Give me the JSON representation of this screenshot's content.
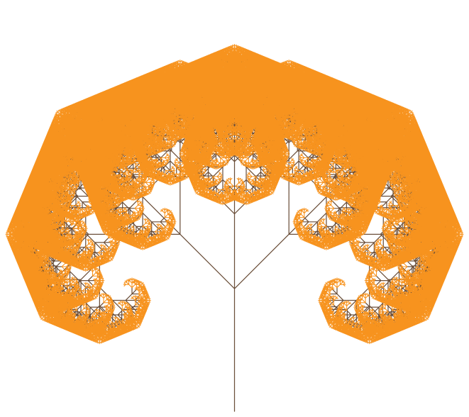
{
  "scene": {
    "subject": "fractal-tree",
    "symmetric": true,
    "recursion_depth": 11,
    "branch_angle_deg": 45,
    "length_ratio": 0.7,
    "colors": {
      "background": "#ffffff",
      "branch": "#6b4f3a",
      "tip": "#f7931e"
    }
  }
}
